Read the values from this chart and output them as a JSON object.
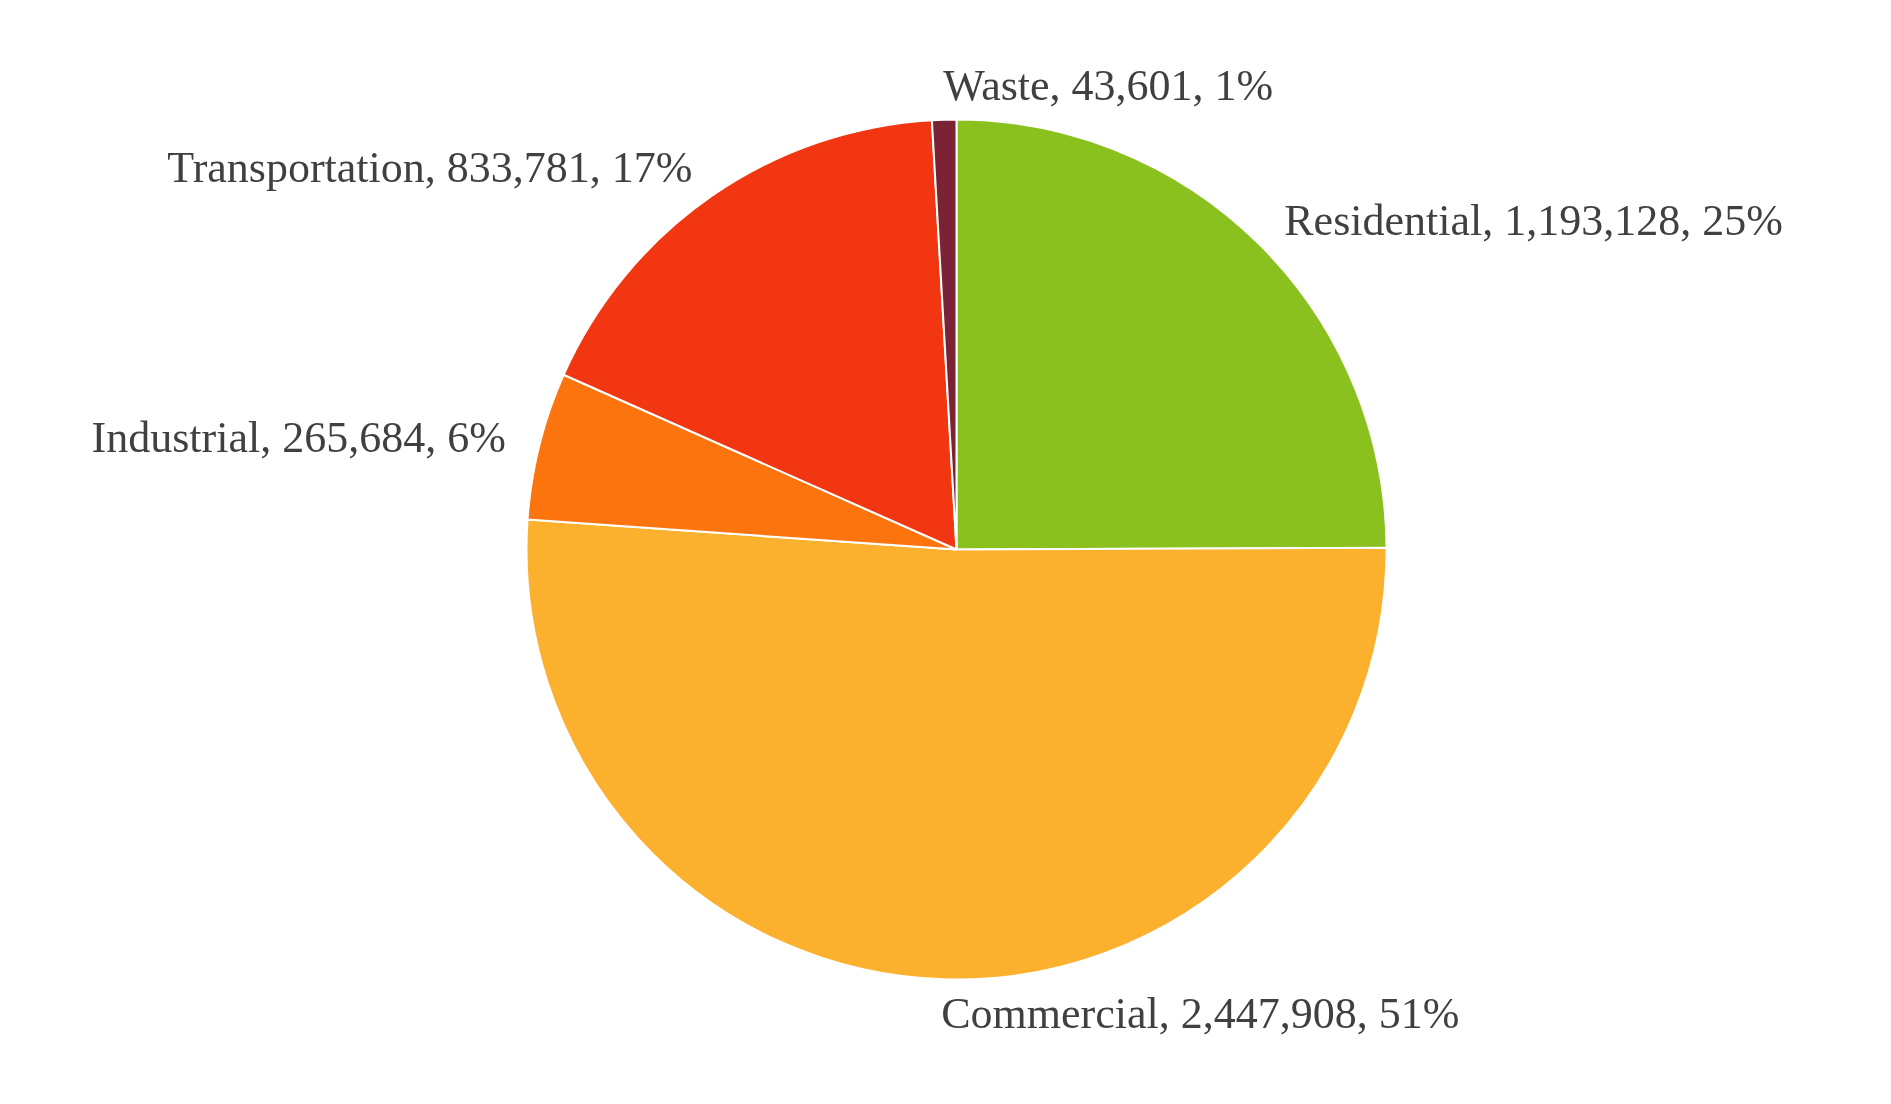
{
  "chart_data": {
    "type": "pie",
    "categories": [
      "Residential",
      "Commercial",
      "Industrial",
      "Transportation",
      "Waste"
    ],
    "values": [
      1193128,
      2447908,
      265684,
      833781,
      43601
    ],
    "value_labels": [
      "1,193,128, 25%",
      "2,447,908, 51%",
      "265,684, 6%",
      "833,781, 17%",
      "43,601, 1%"
    ],
    "colors": [
      "#8bc11f",
      "#fbb02e",
      "#fc740e",
      "#f23611",
      "#7b2335"
    ]
  }
}
